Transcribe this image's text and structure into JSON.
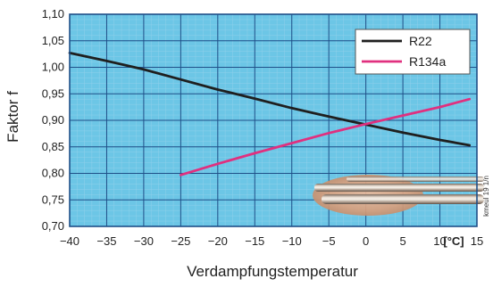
{
  "chart_data": {
    "type": "line",
    "title": "",
    "xlabel": "Verdampfungstemperatur",
    "ylabel": "Faktor f",
    "x_unit": "[°C]",
    "xlim": [
      -40,
      15
    ],
    "ylim": [
      0.7,
      1.1
    ],
    "x_ticks": [
      -40,
      -35,
      -30,
      -25,
      -20,
      -15,
      -10,
      -5,
      0,
      5,
      10,
      15
    ],
    "x_tick_labels": [
      "−40",
      "−35",
      "−30",
      "−25",
      "−20",
      "−15",
      "−10",
      "−5",
      "0",
      "5",
      "10",
      "15"
    ],
    "y_ticks": [
      0.7,
      0.75,
      0.8,
      0.85,
      0.9,
      0.95,
      1.0,
      1.05,
      1.1
    ],
    "y_tick_labels": [
      "0,70",
      "0,75",
      "0,80",
      "0,85",
      "0,90",
      "0,95",
      "1,00",
      "1,05",
      "1,10"
    ],
    "grid": true,
    "legend_position": "top-right",
    "series": [
      {
        "name": "R22",
        "color": "#1f1f1f",
        "x": [
          -40,
          -35,
          -30,
          -25,
          -20,
          -15,
          -10,
          -5,
          0,
          5,
          10,
          14
        ],
        "y": [
          1.027,
          1.012,
          0.996,
          0.977,
          0.958,
          0.941,
          0.923,
          0.907,
          0.892,
          0.877,
          0.863,
          0.853
        ]
      },
      {
        "name": "R134a",
        "color": "#e0307f",
        "x": [
          -25,
          -20,
          -15,
          -10,
          -5,
          0,
          5,
          10,
          14
        ],
        "y": [
          0.797,
          0.818,
          0.838,
          0.857,
          0.876,
          0.893,
          0.909,
          0.925,
          0.94
        ]
      }
    ],
    "side_label": "kmeul 19 1/n"
  },
  "colors": {
    "plot_background": "#6cc6e6",
    "grid_major": "#1f4f88",
    "grid_minor": "#8fd0ea",
    "frame": "#1f4f88"
  }
}
